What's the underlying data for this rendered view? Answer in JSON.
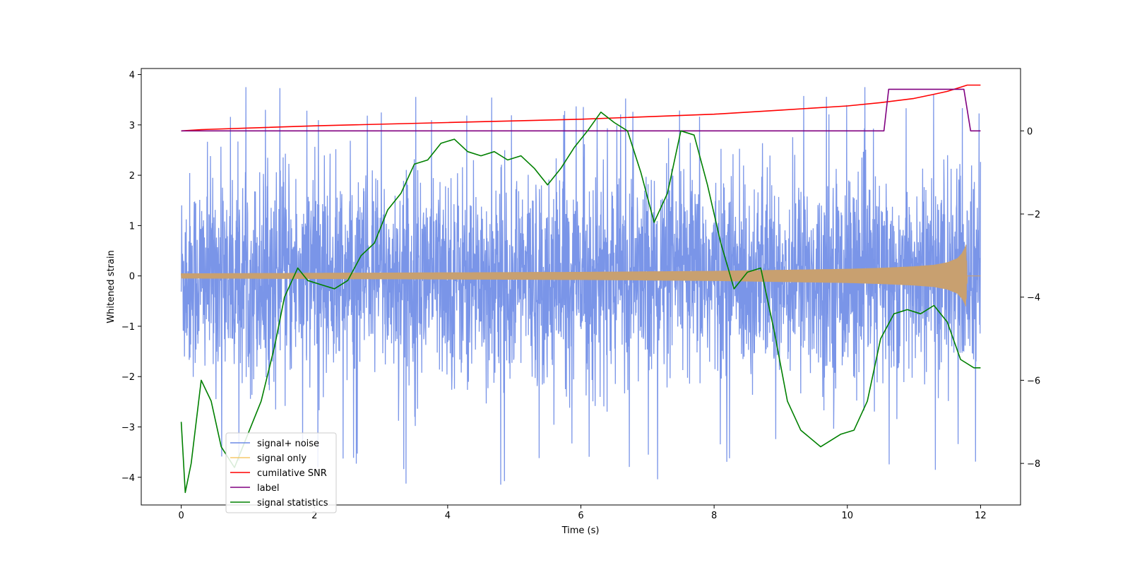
{
  "chart_data": {
    "type": "line",
    "xlabel": "Time (s)",
    "ylabel_left": "Whitened strain",
    "ylabel_right": "",
    "xlim": [
      -0.6,
      12.6
    ],
    "ylim_left": [
      -4.55,
      4.12
    ],
    "ylim_right": [
      -9.0,
      1.5
    ],
    "x_ticks": [
      0,
      2,
      4,
      6,
      8,
      10,
      12
    ],
    "y_ticks_left": [
      4,
      3,
      2,
      1,
      0,
      -1,
      -2,
      -3,
      -4
    ],
    "y_ticks_right": [
      0,
      -2,
      -4,
      -6,
      -8
    ],
    "grid": false,
    "legend_position": "lower-left",
    "legend": [
      {
        "name": "signal+ noise",
        "color": "#6b8ae6"
      },
      {
        "name": "signal only",
        "color": "#f5c96a"
      },
      {
        "name": "cumilative SNR",
        "color": "#ff0000"
      },
      {
        "name": "label",
        "color": "#800080"
      },
      {
        "name": "signal statistics",
        "color": "#008000"
      }
    ],
    "series": [
      {
        "name": "signal+ noise",
        "axis": "left",
        "color": "#6b8ae6",
        "kind": "noise band",
        "x_range": [
          0,
          12
        ],
        "typical_range": [
          -2.2,
          2.6
        ],
        "extremes": [
          -4.15,
          3.75
        ]
      },
      {
        "name": "signal only",
        "axis": "left",
        "color": "#c8a070",
        "kind": "chirp envelope",
        "x": [
          0,
          2,
          4,
          6,
          8,
          9,
          10,
          10.5,
          11,
          11.3,
          11.5,
          11.65,
          11.72,
          11.76,
          11.78,
          11.8,
          12
        ],
        "amplitude": [
          0.05,
          0.06,
          0.07,
          0.08,
          0.1,
          0.12,
          0.14,
          0.16,
          0.19,
          0.22,
          0.27,
          0.35,
          0.45,
          0.55,
          0.62,
          0.0,
          0.0
        ]
      },
      {
        "name": "cumilative SNR",
        "axis": "right",
        "color": "#ff0000",
        "x": [
          0,
          0.3,
          2,
          4,
          6,
          8,
          9,
          10,
          10.5,
          11,
          11.3,
          11.5,
          11.7,
          11.8,
          12
        ],
        "y": [
          0,
          0.03,
          0.12,
          0.2,
          0.28,
          0.4,
          0.5,
          0.6,
          0.68,
          0.78,
          0.88,
          0.95,
          1.05,
          1.1,
          1.1
        ]
      },
      {
        "name": "label",
        "axis": "right",
        "color": "#800080",
        "x": [
          0,
          10.55,
          10.62,
          11.75,
          11.85,
          12
        ],
        "y": [
          0,
          0,
          1,
          1,
          0,
          0
        ]
      },
      {
        "name": "signal statistics",
        "axis": "right",
        "color": "#008000",
        "x": [
          0,
          0.06,
          0.15,
          0.3,
          0.45,
          0.6,
          0.8,
          1.0,
          1.2,
          1.4,
          1.55,
          1.75,
          1.9,
          2.1,
          2.3,
          2.5,
          2.7,
          2.9,
          3.1,
          3.3,
          3.5,
          3.7,
          3.9,
          4.1,
          4.3,
          4.5,
          4.7,
          4.9,
          5.1,
          5.3,
          5.5,
          5.7,
          5.9,
          6.1,
          6.3,
          6.5,
          6.7,
          6.9,
          7.1,
          7.3,
          7.5,
          7.7,
          7.9,
          8.1,
          8.3,
          8.5,
          8.7,
          8.9,
          9.1,
          9.3,
          9.6,
          9.9,
          10.1,
          10.3,
          10.5,
          10.7,
          10.9,
          11.1,
          11.3,
          11.5,
          11.7,
          11.9,
          12.0
        ],
        "y": [
          -7.0,
          -8.7,
          -8.0,
          -6.0,
          -6.5,
          -7.6,
          -8.1,
          -7.3,
          -6.5,
          -5.2,
          -4.0,
          -3.3,
          -3.6,
          -3.7,
          -3.8,
          -3.6,
          -3.0,
          -2.7,
          -1.9,
          -1.5,
          -0.8,
          -0.7,
          -0.3,
          -0.2,
          -0.5,
          -0.6,
          -0.5,
          -0.7,
          -0.6,
          -0.9,
          -1.3,
          -0.9,
          -0.4,
          0.0,
          0.45,
          0.2,
          0.0,
          -1.0,
          -2.2,
          -1.5,
          0.0,
          -0.1,
          -1.3,
          -2.7,
          -3.8,
          -3.4,
          -3.3,
          -4.8,
          -6.5,
          -7.2,
          -7.6,
          -7.3,
          -7.2,
          -6.5,
          -5.0,
          -4.4,
          -4.3,
          -4.4,
          -4.2,
          -4.6,
          -5.5,
          -5.7,
          -5.7
        ]
      }
    ]
  }
}
